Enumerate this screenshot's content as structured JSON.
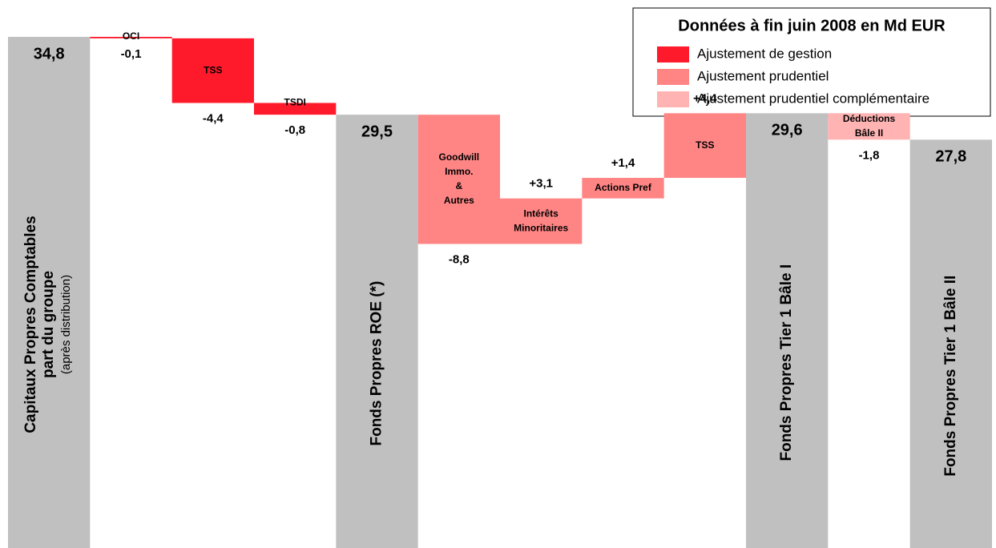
{
  "chart_data": {
    "type": "waterfall",
    "categories": [
      [
        "Capitaux Propres Comptables",
        "part du groupe",
        "(après distribution)"
      ],
      [
        "OCI"
      ],
      [
        "TSS"
      ],
      [
        "TSDI"
      ],
      [
        "Fonds Propres ROE (*)"
      ],
      [
        "Goodwill",
        "Immo.",
        "&",
        "Autres"
      ],
      [
        "Intérêts",
        "Minoritaires"
      ],
      [
        "Actions Pref"
      ],
      [
        "TSS"
      ],
      [
        "Fonds Propres Tier 1 Bâle I"
      ],
      [
        "Déductions",
        "Bâle II"
      ],
      [
        "Fonds Propres Tier 1 Bâle II"
      ]
    ],
    "measure": [
      "absolute",
      "relative",
      "relative",
      "relative",
      "absolute",
      "relative",
      "relative",
      "relative",
      "relative",
      "absolute",
      "relative",
      "absolute"
    ],
    "values": [
      34.8,
      -0.1,
      -4.4,
      -0.8,
      29.5,
      -8.8,
      3.1,
      1.4,
      4.4,
      29.6,
      -1.8,
      27.8
    ],
    "value_labels": [
      "34,8",
      "-0,1",
      "-4,4",
      "-0,8",
      "29,5",
      "-8,8",
      "+3,1",
      "+1,4",
      "+4,4",
      "29,6",
      "-1,8",
      "27,8"
    ],
    "colors": [
      "#c0c0c0",
      "#ff1a2b",
      "#ff1a2b",
      "#ff1a2b",
      "#c0c0c0",
      "#ff8585",
      "#ff8585",
      "#ff8585",
      "#ff8585",
      "#c0c0c0",
      "#ffb3b3",
      "#c0c0c0"
    ],
    "legend": {
      "title": "Données à fin juin 2008 en Md EUR",
      "entries": [
        {
          "name": "Ajustement de gestion",
          "color": "#ff1a2b"
        },
        {
          "name": "Ajustement prudentiel",
          "color": "#ff8585"
        },
        {
          "name": "Ajustement prudentiel complémentaire",
          "color": "#ffb3b3"
        }
      ]
    }
  }
}
